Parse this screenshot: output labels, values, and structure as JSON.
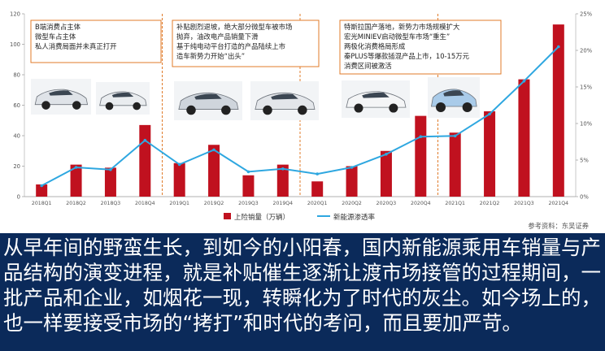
{
  "chart_data": {
    "type": "bar+line",
    "categories": [
      "2018Q1",
      "2018Q2",
      "2018Q3",
      "2018Q4",
      "2019Q1",
      "2019Q2",
      "2019Q3",
      "2019Q4",
      "2020Q1",
      "2020Q2",
      "2020Q3",
      "2020Q4",
      "2021Q1",
      "2021Q2",
      "2021Q3",
      "2021Q4"
    ],
    "series": [
      {
        "name": "上险销量（万辆）",
        "axis": "left",
        "color": "#c0111f",
        "values": [
          8,
          21,
          19,
          47,
          22,
          34,
          14,
          21,
          10,
          20,
          30,
          53,
          42,
          56,
          77,
          113
        ]
      },
      {
        "name": "新能源渗透率",
        "axis": "right",
        "color": "#2ea7e0",
        "values": [
          0.015,
          0.04,
          0.037,
          0.077,
          0.044,
          0.064,
          0.034,
          0.038,
          0.031,
          0.04,
          0.058,
          0.082,
          0.083,
          0.113,
          0.158,
          0.205
        ]
      }
    ],
    "left_ylim": [
      0,
      120
    ],
    "left_ticks": [
      "0",
      "20",
      "40",
      "60",
      "80",
      "100",
      "120"
    ],
    "right_ylim": [
      0,
      0.25
    ],
    "right_ticks": [
      "0%",
      "5%",
      "10%",
      "15%",
      "20%",
      "25%"
    ],
    "grid": false,
    "legend_position": "bottom",
    "annotations": [
      [
        "B端消费占主体",
        "微型车占主体",
        "私人消费局面并未真正打开"
      ],
      [
        "补贴剧烈退坡，绝大部分微型车被市场",
        "抛弃，油改电产品销量下滑",
        "基于纯电动平台打造的产品陆续上市",
        "造车新势力开始“出头”"
      ],
      [
        "特斯拉国产落地，新势力市场规模扩大",
        "宏光MINIEV启动微型车市场“重生”",
        "两极化消费格局形成",
        "秦PLUS等爆款插混产品上市，10-15万元",
        "消费区间被激活"
      ]
    ],
    "source": "参考资料：东吴证券"
  },
  "caption": "从早年间的野蛮生长，到如今的小阳春，国内新能源乘用车销量与产品结构的演变进程，就是补贴催生逐渐让渡市场接管的过程期间，一批产品和企业，如烟花一现，转瞬化为了时代的灰尘。如今场上的，也一样要接受市场的“拷打”和时代的考问，而且要加严苛。"
}
